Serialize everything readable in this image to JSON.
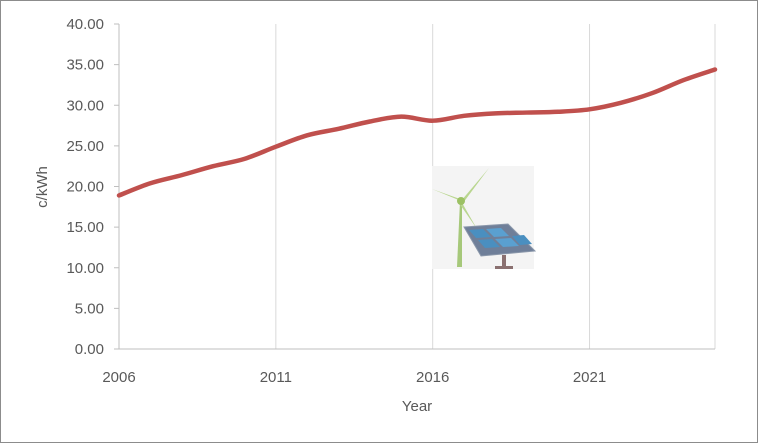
{
  "chart_data": {
    "type": "line",
    "title": "",
    "xlabel": "Year",
    "ylabel": "c/kWh",
    "xlim": [
      2006,
      2025
    ],
    "ylim": [
      0,
      40
    ],
    "x_ticks": [
      "2006",
      "2011",
      "2016",
      "2021"
    ],
    "y_ticks": [
      "0.00",
      "5.00",
      "10.00",
      "15.00",
      "20.00",
      "25.00",
      "30.00",
      "35.00",
      "40.00"
    ],
    "grid": "vertical",
    "legend": "none",
    "series": [
      {
        "color": "#c0504d",
        "x": [
          2006,
          2007,
          2008,
          2009,
          2010,
          2011,
          2012,
          2013,
          2014,
          2015,
          2016,
          2017,
          2018,
          2019,
          2020,
          2021,
          2022,
          2023,
          2024,
          2025
        ],
        "y": [
          18.9,
          20.4,
          21.4,
          22.5,
          23.4,
          24.9,
          26.3,
          27.1,
          28.0,
          28.6,
          28.1,
          28.7,
          29.0,
          29.1,
          29.2,
          29.5,
          30.3,
          31.5,
          33.1,
          34.4
        ]
      }
    ]
  },
  "decoration": {
    "icon": "wind-turbine-solar-panel-icon"
  }
}
